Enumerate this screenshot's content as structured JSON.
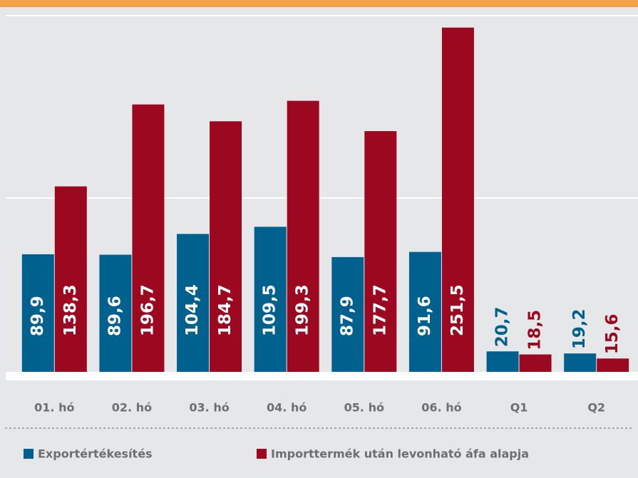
{
  "chart_data": {
    "type": "bar",
    "categories": [
      "01. hó",
      "02. hó",
      "03. hó",
      "04. hó",
      "05. hó",
      "06. hó",
      "Q1",
      "Q2"
    ],
    "series": [
      {
        "name": "Exportértékesítés",
        "color": "#00608e",
        "values": [
          89.9,
          89.6,
          104.4,
          109.5,
          87.9,
          91.6,
          20.7,
          19.2
        ],
        "value_labels": [
          "89,9",
          "89,6",
          "104,4",
          "109,5",
          "87,9",
          "91,6",
          "20,7",
          "19,2"
        ]
      },
      {
        "name": "Importtermék után levonható áfa alapja",
        "color": "#9c0820",
        "values": [
          138.3,
          196.7,
          184.7,
          199.3,
          177.7,
          251.5,
          18.5,
          15.6
        ],
        "value_labels": [
          "138,3",
          "196,7",
          "184,7",
          "199,3",
          "177,7",
          "251,5",
          "18,5",
          "15,6"
        ]
      }
    ],
    "ylim": [
      0,
      260
    ],
    "yticks": [
      130,
      260
    ],
    "grid": true
  }
}
